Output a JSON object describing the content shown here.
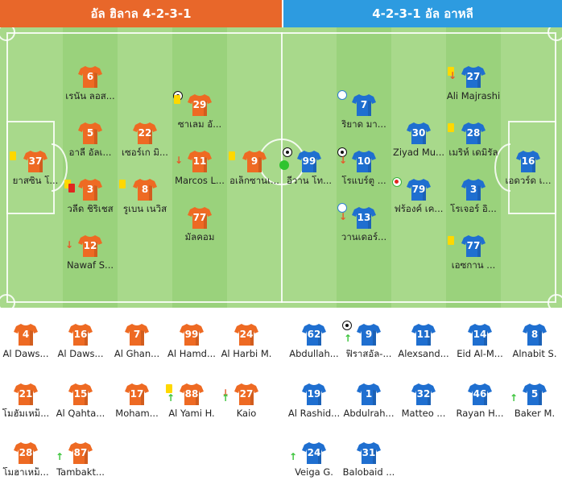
{
  "header": {
    "home_label": "อัล ฮิลาล 4-2-3-1",
    "away_label": "4-2-3-1 อัล อาหลี"
  },
  "colors": {
    "home_shirt": "#ee6a23",
    "away_shirt": "#1f6fd0",
    "pitch_light": "#a7d98a",
    "pitch_dark": "#99d17b"
  },
  "home_lineup": [
    {
      "number": "37",
      "name": "ยาสซิน โ...",
      "icons": [
        "yellow-card"
      ]
    },
    {
      "number": "6",
      "name": "เรนัน ลอส...",
      "icons": []
    },
    {
      "number": "5",
      "name": "อาลี อัลเ...",
      "icons": []
    },
    {
      "number": "3",
      "name": "วลีด ชิริเชส",
      "icons": [
        "yellow-card",
        "red-card"
      ]
    },
    {
      "number": "12",
      "name": "Nawaf S...",
      "icons": [
        "sub-off"
      ]
    },
    {
      "number": "22",
      "name": "เซอร์เก มิ...",
      "icons": []
    },
    {
      "number": "8",
      "name": "รูเบน เนวิส",
      "icons": [
        "yellow-card"
      ]
    },
    {
      "number": "29",
      "name": "ซาเลม อั...",
      "icons": [
        "goal",
        "yellow-card"
      ]
    },
    {
      "number": "11",
      "name": "Marcos L...",
      "icons": [
        "sub-off"
      ]
    },
    {
      "number": "77",
      "name": "มัลคอม",
      "icons": []
    },
    {
      "number": "9",
      "name": "อเล็กซานเ...",
      "icons": [
        "yellow-card"
      ]
    }
  ],
  "away_lineup": [
    {
      "number": "99",
      "name": "อีวาน โท...",
      "icons": [
        "goal",
        "own-goal"
      ]
    },
    {
      "number": "7",
      "name": "ริยาด มา...",
      "icons": [
        "penalty"
      ]
    },
    {
      "number": "10",
      "name": "โรแบร์ตู ...",
      "icons": [
        "goal",
        "sub-off"
      ]
    },
    {
      "number": "13",
      "name": "วานเดอร์...",
      "icons": [
        "penalty",
        "sub-off"
      ]
    },
    {
      "number": "30",
      "name": "Ziyad Mu...",
      "icons": []
    },
    {
      "number": "79",
      "name": "ฟร้องค์ เค...",
      "icons": [
        "missed-penalty"
      ]
    },
    {
      "number": "27",
      "name": "Ali Majrashi",
      "icons": [
        "yellow-card",
        "sub-off"
      ]
    },
    {
      "number": "28",
      "name": "เมริห์ เดมิรัล",
      "icons": [
        "yellow-card"
      ]
    },
    {
      "number": "3",
      "name": "โรเจอร์ อิ...",
      "icons": []
    },
    {
      "number": "77",
      "name": "เอซกาน ...",
      "icons": [
        "yellow-card"
      ]
    },
    {
      "number": "16",
      "name": "เอดวร์ด เ...",
      "icons": []
    }
  ],
  "home_subs": [
    {
      "number": "4",
      "name": "Al Daws...",
      "icons": []
    },
    {
      "number": "16",
      "name": "Al Daws...",
      "icons": []
    },
    {
      "number": "7",
      "name": "Al Ghan...",
      "icons": []
    },
    {
      "number": "99",
      "name": "Al Hamd...",
      "icons": []
    },
    {
      "number": "24",
      "name": "Al Harbi M.",
      "icons": []
    },
    {
      "number": "21",
      "name": "โมฮัมเหม็...",
      "icons": []
    },
    {
      "number": "15",
      "name": "Al Qahta...",
      "icons": []
    },
    {
      "number": "17",
      "name": "Moham...",
      "icons": []
    },
    {
      "number": "88",
      "name": "Al Yami H.",
      "icons": [
        "yellow-card",
        "sub-on"
      ]
    },
    {
      "number": "27",
      "name": "Kaio",
      "icons": [
        "sub-off",
        "sub-on"
      ]
    },
    {
      "number": "28",
      "name": "โมฮาเหม็...",
      "icons": []
    },
    {
      "number": "87",
      "name": "Tambakt...",
      "icons": [
        "sub-on"
      ]
    }
  ],
  "away_subs": [
    {
      "number": "62",
      "name": "Abdullah...",
      "icons": []
    },
    {
      "number": "9",
      "name": "ฟิราสอัล-...",
      "icons": [
        "goal",
        "sub-on"
      ]
    },
    {
      "number": "11",
      "name": "Alexsand...",
      "icons": []
    },
    {
      "number": "14",
      "name": "Eid Al-M...",
      "icons": []
    },
    {
      "number": "8",
      "name": "Alnabit S.",
      "icons": []
    },
    {
      "number": "19",
      "name": "Al Rashid...",
      "icons": []
    },
    {
      "number": "1",
      "name": "Abdulrah...",
      "icons": []
    },
    {
      "number": "32",
      "name": "Matteo ...",
      "icons": []
    },
    {
      "number": "46",
      "name": "Rayan H...",
      "icons": []
    },
    {
      "number": "5",
      "name": "Baker M.",
      "icons": [
        "sub-on"
      ]
    },
    {
      "number": "24",
      "name": "Veiga G.",
      "icons": [
        "sub-on"
      ]
    },
    {
      "number": "31",
      "name": "Balobaid ...",
      "icons": []
    }
  ]
}
